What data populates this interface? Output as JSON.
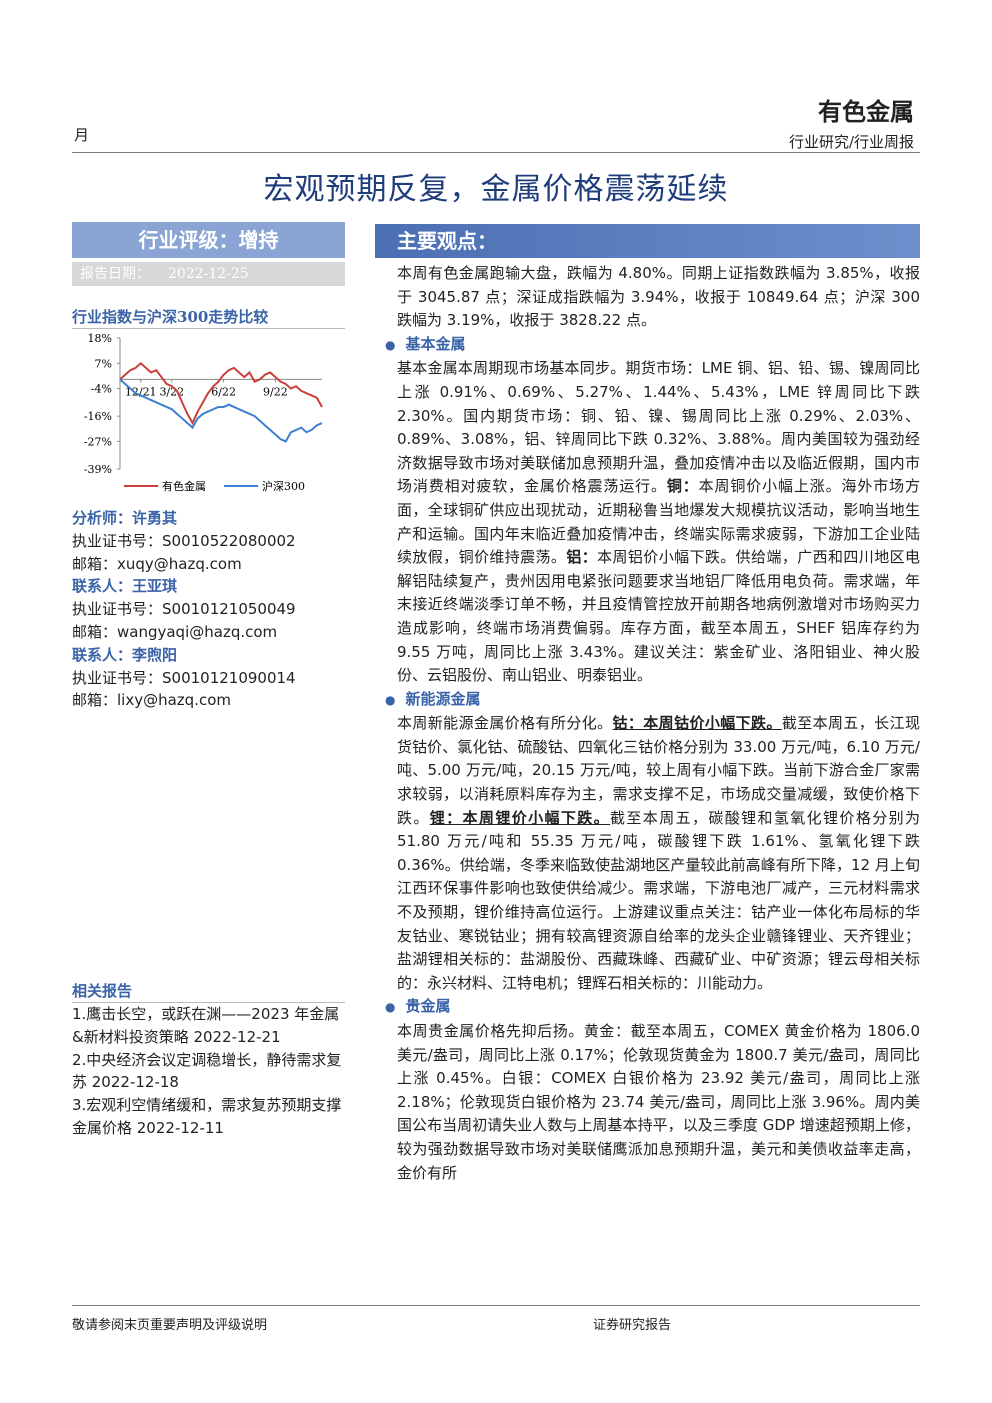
{
  "header": {
    "side_mark": "月",
    "sector": "有色金属",
    "category": "行业研究/行业周报"
  },
  "title": "宏观预期反复，金属价格震荡延续",
  "rating": "行业评级：增持",
  "report_date": {
    "label": "报告日期：",
    "value": "2022-12-25"
  },
  "chart": {
    "title": "行业指数与沪深300走势比较",
    "type": "line",
    "xlim": [
      0,
      39
    ],
    "xticks": [
      {
        "value": 4,
        "label": "12/21"
      },
      {
        "value": 10,
        "label": "3/22"
      },
      {
        "value": 20,
        "label": "6/22"
      },
      {
        "value": 30,
        "label": "9/22"
      }
    ],
    "ylim": [
      -39,
      18
    ],
    "yticks": [
      {
        "value": 18,
        "label": "18%"
      },
      {
        "value": 7,
        "label": "7%"
      },
      {
        "value": -4,
        "label": "-4%"
      },
      {
        "value": -16,
        "label": "-16%"
      },
      {
        "value": -27,
        "label": "-27%"
      },
      {
        "value": -39,
        "label": "-39%"
      }
    ],
    "series": [
      {
        "name": "有色金属",
        "color": "#c8403a",
        "values": [
          0,
          2,
          4,
          5,
          7,
          5,
          3,
          4,
          1,
          -2,
          -3,
          -5,
          -10,
          -15,
          -19,
          -14,
          -10,
          -6,
          -3,
          -1,
          2,
          4,
          5,
          3,
          1,
          3,
          -1,
          0,
          2,
          3,
          1,
          -1,
          -2,
          -4,
          -3,
          -5,
          -6,
          -7,
          -8,
          -12
        ]
      },
      {
        "name": "沪深300",
        "color": "#3d7fd0",
        "values": [
          0,
          -2,
          -4,
          -6,
          -7,
          -8,
          -9,
          -10,
          -11,
          -12,
          -13,
          -15,
          -17,
          -19,
          -21,
          -17,
          -15,
          -14,
          -13,
          -12,
          -12,
          -11,
          -12,
          -13,
          -14,
          -15,
          -16,
          -18,
          -20,
          -22,
          -24,
          -26,
          -27,
          -23,
          -22,
          -21,
          -23,
          -22,
          -20,
          -19
        ]
      }
    ]
  },
  "contacts": [
    {
      "role": "分析师：许勇其",
      "lines": [
        "执业证书号：S0010522080002",
        "邮箱：xuqy@hazq.com"
      ]
    },
    {
      "role": "联系人：王亚琪",
      "lines": [
        "执业证书号：S0010121050049",
        "邮箱：wangyaqi@hazq.com"
      ]
    },
    {
      "role": "联系人：李煦阳",
      "lines": [
        "执业证书号：S0010121090014",
        "邮箱：lixy@hazq.com"
      ]
    }
  ],
  "related": {
    "title": "相关报告",
    "items": [
      "1.鹰击长空，或跃在渊——2023 年金属&新材料投资策略 2022-12-21",
      "2.中央经济会议定调稳增长，静待需求复苏 2022-12-18",
      "3.宏观利空情绪缓和，需求复苏预期支撑金属价格 2022-12-11"
    ]
  },
  "main": {
    "title": "主要观点：",
    "intro": [
      "本周有色金属跑输大盘，跌幅为 4.80%。同期上证指数跌幅为 3.85%，收报于 3045.87 点；深证成指跌幅为 3.94%，收报于 10849.64 点；沪深 300 跌幅为 3.19%，收报于 3828.22 点。"
    ],
    "sections": [
      {
        "heading": "基本金属",
        "paragraph": [
          "基本金属本周期现市场基本同步。期货市场：LME 铜、铝、铅、锡、镍周同比上涨 0.91%、0.69%、5.27%、1.44%、5.43%，LME 锌周同比下跌 2.30%。国内期货市场：铜、铅、镍、锡周同比上涨 0.29%、2.03%、0.89%、3.08%，铝、锌周同比下跌 0.32%、3.88%。周内美国较为强劲经济数据导致市场对美联储加息预期升温，叠加疫情冲击以及临近假期，国内市场消费相对疲软，金属价格震荡运行。",
          {
            "text": "铜：",
            "emphasis": "bold"
          },
          "本周铜价小幅上涨。海外市场方面，全球铜矿供应出现扰动，近期秘鲁当地爆发大规模抗议活动，影响当地生产和运输。国内年末临近叠加疫情冲击，终端实际需求疲弱，下游加工企业陆续放假，铜价维持震荡。",
          {
            "text": "铝：",
            "emphasis": "bold"
          },
          "本周铝价小幅下跌。供给端，广西和四川地区电解铝陆续复产，贵州因用电紧张问题要求当地铝厂降低用电负荷。需求端，年末接近终端淡季订单不畅，并且疫情管控放开前期各地病例激增对市场购买力造成影响，终端市场消费偏弱。库存方面，截至本周五，SHEF 铝库存约为 9.55 万吨，周同比上涨 3.43%。建议关注：紫金矿业、洛阳钼业、神火股份、云铝股份、南山铝业、明泰铝业。"
        ]
      },
      {
        "heading": "新能源金属",
        "paragraph": [
          "本周新能源金属价格有所分化。",
          {
            "text": "钴：本周钴价小幅下跌。",
            "emphasis": "underline"
          },
          "截至本周五，长江现货钴价、氯化钴、硫酸钴、四氧化三钴价格分别为 33.00 万元/吨，6.10 万元/吨、5.00 万元/吨，20.15 万元/吨，较上周有小幅下跌。当前下游合金厂家需求较弱，以消耗原料库存为主，需求支撑不足，市场成交量减缓，致使价格下跌。",
          {
            "text": "锂：本周锂价小幅下跌。",
            "emphasis": "underline"
          },
          "截至本周五，碳酸锂和氢氧化锂价格分别为 51.80 万元/吨和 55.35 万元/吨，碳酸锂下跌 1.61%、氢氧化锂下跌 0.36%。供给端，冬季来临致使盐湖地区产量较此前高峰有所下降，12 月上旬江西环保事件影响也致使供给减少。需求端，下游电池厂减产，三元材料需求不及预期，锂价维持高位运行。上游建议重点关注：钴产业一体化布局标的华友钴业、寒锐钴业；拥有较高锂资源自给率的龙头企业赣锋锂业、天齐锂业；盐湖锂相关标的：盐湖股份、西藏珠峰、西藏矿业、中矿资源；锂云母相关标的：永兴材料、江特电机；锂辉石相关标的：川能动力。"
        ]
      },
      {
        "heading": "贵金属",
        "paragraph": [
          "本周贵金属价格先抑后扬。黄金：截至本周五，COMEX 黄金价格为 1806.0 美元/盎司，周同比上涨 0.17%；伦敦现货黄金为 1800.7 美元/盎司，周同比上涨 0.45%。白银：COMEX 白银价格为 23.92 美元/盎司，周同比上涨 2.18%；伦敦现货白银价格为 23.74 美元/盎司，周同比上涨 3.96%。周内美国公布当周初请失业人数与上周基本持平，以及三季度 GDP 增速超预期上修，较为强劲数据导致市场对美联储鹰派加息预期升温，美元和美债收益率走高，金价有所"
        ]
      }
    ]
  },
  "footer": {
    "notice": "敬请参阅末页重要声明及评级说明",
    "doc_type": "证券研究报告"
  }
}
